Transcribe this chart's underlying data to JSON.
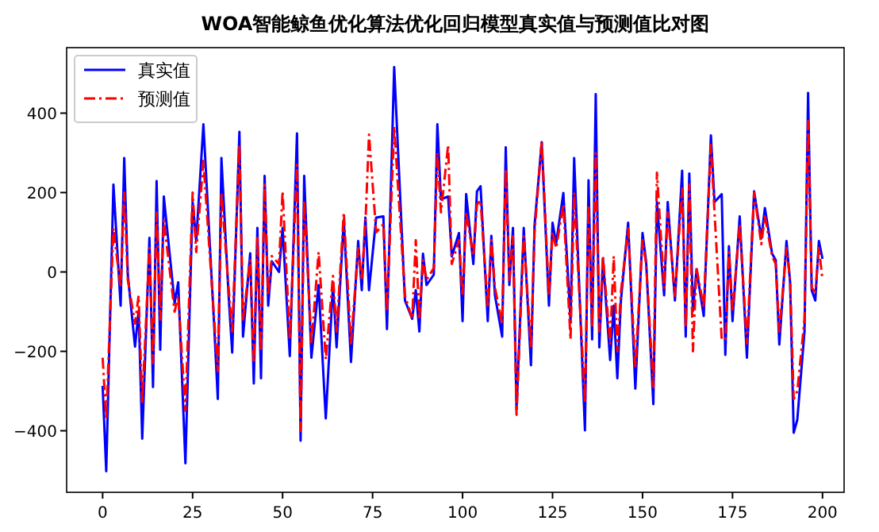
{
  "chart_data": {
    "type": "line",
    "title": "WOA智能鲸鱼优化算法优化回归模型真实值与预测值比对图",
    "xlim": [
      -10,
      206
    ],
    "ylim": [
      -555,
      565
    ],
    "xticks": [
      0,
      25,
      50,
      75,
      100,
      125,
      150,
      175,
      200
    ],
    "yticks": [
      -400,
      -200,
      0,
      200,
      400
    ],
    "grid": false,
    "legend": "top left",
    "series": [
      {
        "name": "真实值",
        "color": "#0000ff",
        "line_style": "solid",
        "x": [
          0,
          1,
          3,
          5,
          6,
          7,
          9,
          10,
          11,
          13,
          14,
          15,
          16,
          17,
          20,
          21,
          23,
          25,
          26,
          28,
          31,
          32,
          33,
          35,
          36,
          38,
          39,
          41,
          42,
          43,
          44,
          45,
          46,
          47,
          49,
          50,
          52,
          54,
          55,
          56,
          58,
          60,
          62,
          64,
          65,
          67,
          69,
          71,
          72,
          73,
          74,
          76,
          78,
          79,
          81,
          84,
          86,
          87,
          88,
          89,
          90,
          92,
          93,
          94,
          96,
          97,
          99,
          100,
          101,
          103,
          104,
          105,
          107,
          108,
          109,
          111,
          112,
          113,
          114,
          115,
          117,
          119,
          120,
          122,
          124,
          125,
          126,
          128,
          130,
          131,
          134,
          135,
          136,
          137,
          138,
          139,
          141,
          142,
          143,
          144,
          146,
          148,
          150,
          151,
          153,
          154,
          156,
          157,
          159,
          161,
          162,
          163,
          164,
          165,
          167,
          169,
          170,
          172,
          173,
          174,
          175,
          177,
          179,
          181,
          183,
          184,
          186,
          187,
          188,
          190,
          191,
          192,
          193,
          195,
          196,
          197,
          198,
          199,
          200
        ],
        "values": [
          -287,
          -502,
          220,
          -85,
          287,
          -7,
          -188,
          -98,
          -420,
          86,
          -290,
          229,
          -196,
          190,
          -78,
          -26,
          -482,
          176,
          78,
          372,
          -137,
          -320,
          287,
          -59,
          -203,
          353,
          -163,
          47,
          -281,
          111,
          -268,
          242,
          -85,
          27,
          0,
          111,
          -212,
          349,
          -425,
          242,
          -216,
          -33,
          -369,
          -31,
          -190,
          131,
          -227,
          78,
          -46,
          137,
          -46,
          137,
          140,
          -144,
          516,
          -72,
          -118,
          -46,
          -150,
          46,
          -33,
          -7,
          372,
          183,
          190,
          39,
          98,
          -124,
          196,
          20,
          203,
          216,
          -124,
          91,
          -59,
          -163,
          314,
          -33,
          111,
          -346,
          111,
          -235,
          118,
          327,
          -85,
          124,
          72,
          199,
          -124,
          287,
          -399,
          231,
          -170,
          448,
          -190,
          33,
          -222,
          -85,
          -268,
          -72,
          124,
          -294,
          98,
          26,
          -333,
          176,
          -59,
          176,
          -72,
          255,
          -163,
          248,
          -98,
          7,
          -111,
          344,
          176,
          196,
          -209,
          65,
          -124,
          140,
          -216,
          203,
          85,
          161,
          46,
          30,
          -183,
          78,
          -26,
          -405,
          -372,
          -150,
          451,
          -46,
          -72,
          78,
          33
        ]
      },
      {
        "name": "预测值",
        "color": "#ff0000",
        "line_style": "dashdot",
        "x": [
          0,
          1,
          3,
          5,
          6,
          7,
          9,
          10,
          11,
          13,
          14,
          15,
          16,
          17,
          20,
          21,
          23,
          25,
          26,
          28,
          31,
          32,
          33,
          35,
          36,
          38,
          39,
          41,
          42,
          43,
          44,
          45,
          46,
          47,
          49,
          50,
          52,
          54,
          55,
          56,
          58,
          60,
          62,
          64,
          65,
          67,
          69,
          71,
          72,
          73,
          74,
          76,
          78,
          79,
          81,
          84,
          86,
          87,
          88,
          89,
          90,
          92,
          93,
          94,
          96,
          97,
          99,
          100,
          101,
          103,
          104,
          105,
          107,
          108,
          109,
          111,
          112,
          113,
          114,
          115,
          117,
          119,
          120,
          122,
          124,
          125,
          126,
          128,
          130,
          131,
          134,
          135,
          136,
          137,
          138,
          139,
          141,
          142,
          143,
          144,
          146,
          148,
          150,
          151,
          153,
          154,
          156,
          157,
          159,
          161,
          162,
          163,
          164,
          165,
          167,
          169,
          170,
          172,
          173,
          174,
          175,
          177,
          179,
          181,
          183,
          184,
          186,
          187,
          188,
          190,
          191,
          192,
          193,
          195,
          196,
          197,
          198,
          199,
          200
        ],
        "values": [
          -216,
          -372,
          110,
          -40,
          200,
          -20,
          -130,
          -60,
          -330,
          60,
          -230,
          150,
          -120,
          130,
          -100,
          -60,
          -350,
          200,
          50,
          280,
          -120,
          -250,
          200,
          -40,
          -150,
          320,
          -120,
          30,
          -230,
          90,
          -200,
          220,
          -60,
          40,
          20,
          203,
          -170,
          270,
          -400,
          180,
          -180,
          50,
          -220,
          -10,
          -150,
          150,
          -180,
          60,
          -20,
          120,
          346,
          100,
          120,
          -100,
          366,
          -60,
          -118,
          80,
          -120,
          30,
          -20,
          10,
          300,
          150,
          320,
          20,
          80,
          -60,
          150,
          40,
          170,
          180,
          -90,
          80,
          -40,
          -130,
          260,
          -20,
          90,
          -360,
          90,
          -190,
          100,
          330,
          -60,
          100,
          60,
          170,
          -170,
          200,
          -330,
          170,
          -140,
          300,
          -150,
          40,
          -180,
          40,
          -200,
          -50,
          110,
          -240,
          80,
          20,
          -290,
          250,
          -40,
          150,
          -60,
          210,
          -140,
          220,
          -200,
          10,
          -90,
          320,
          150,
          -170,
          -170,
          50,
          -100,
          120,
          -180,
          200,
          70,
          140,
          40,
          20,
          -150,
          60,
          -20,
          -320,
          -300,
          -120,
          380,
          -40,
          -50,
          60,
          -20
        ]
      }
    ]
  }
}
